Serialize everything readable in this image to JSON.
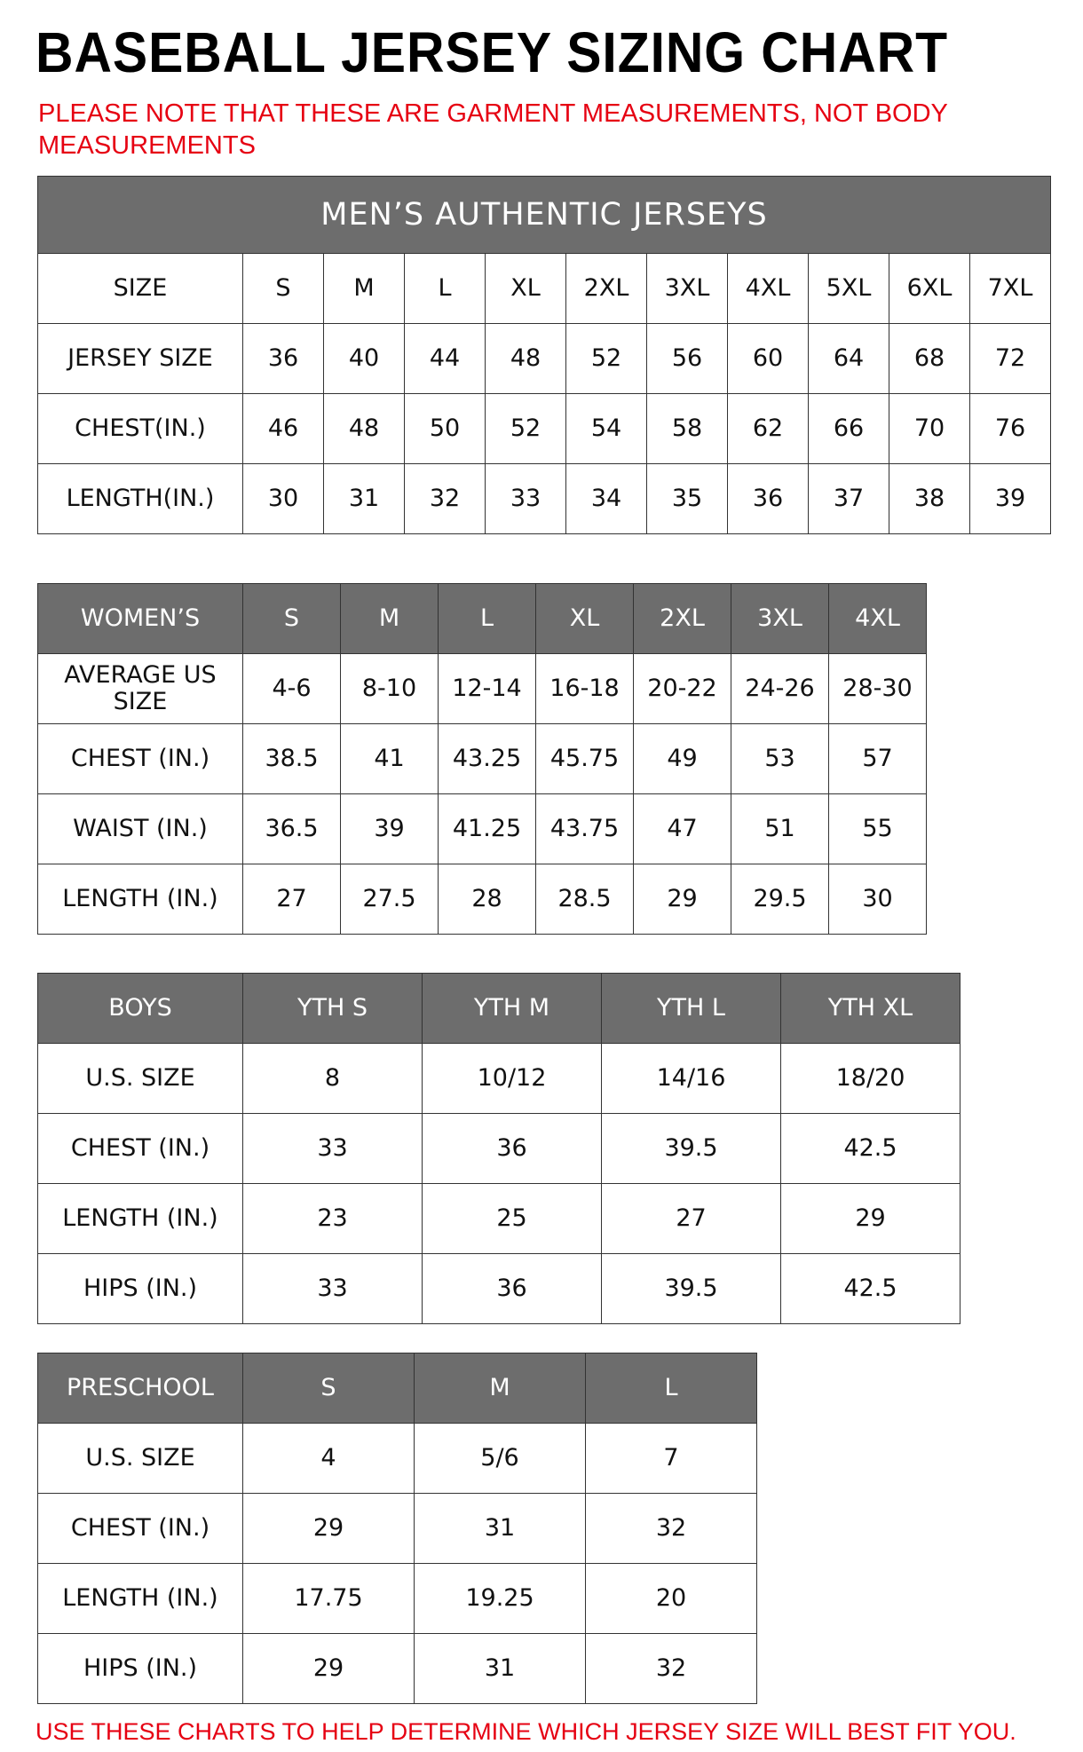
{
  "header": {
    "title": "BASEBALL JERSEY SIZING CHART",
    "note": "PLEASE NOTE THAT THESE ARE GARMENT MEASUREMENTS, NOT BODY MEASUREMENTS"
  },
  "tables": [
    {
      "caption": "MEN’S AUTHENTIC JERSEYS",
      "rows": [
        [
          "SIZE",
          "S",
          "M",
          "L",
          "XL",
          "2XL",
          "3XL",
          "4XL",
          "5XL",
          "6XL",
          "7XL"
        ],
        [
          "JERSEY SIZE",
          "36",
          "40",
          "44",
          "48",
          "52",
          "56",
          "60",
          "64",
          "68",
          "72"
        ],
        [
          "CHEST(IN.)",
          "46",
          "48",
          "50",
          "52",
          "54",
          "58",
          "62",
          "66",
          "70",
          "76"
        ],
        [
          "LENGTH(IN.)",
          "30",
          "31",
          "32",
          "33",
          "34",
          "35",
          "36",
          "37",
          "38",
          "39"
        ]
      ]
    },
    {
      "header": [
        "WOMEN’S",
        "S",
        "M",
        "L",
        "XL",
        "2XL",
        "3XL",
        "4XL"
      ],
      "rows": [
        [
          "AVERAGE US SIZE",
          "4-6",
          "8-10",
          "12-14",
          "16-18",
          "20-22",
          "24-26",
          "28-30"
        ],
        [
          "CHEST (IN.)",
          "38.5",
          "41",
          "43.25",
          "45.75",
          "49",
          "53",
          "57"
        ],
        [
          "WAIST (IN.)",
          "36.5",
          "39",
          "41.25",
          "43.75",
          "47",
          "51",
          "55"
        ],
        [
          "LENGTH (IN.)",
          "27",
          "27.5",
          "28",
          "28.5",
          "29",
          "29.5",
          "30"
        ]
      ]
    },
    {
      "header": [
        "BOYS",
        "YTH S",
        "YTH M",
        "YTH L",
        "YTH XL"
      ],
      "rows": [
        [
          "U.S. SIZE",
          "8",
          "10/12",
          "14/16",
          "18/20"
        ],
        [
          "CHEST (IN.)",
          "33",
          "36",
          "39.5",
          "42.5"
        ],
        [
          "LENGTH (IN.)",
          "23",
          "25",
          "27",
          "29"
        ],
        [
          "HIPS (IN.)",
          "33",
          "36",
          "39.5",
          "42.5"
        ]
      ]
    },
    {
      "header": [
        "PRESCHOOL",
        "S",
        "M",
        "L"
      ],
      "rows": [
        [
          "U.S. SIZE",
          "4",
          "5/6",
          "7"
        ],
        [
          "CHEST (IN.)",
          "29",
          "31",
          "32"
        ],
        [
          "LENGTH (IN.)",
          "17.75",
          "19.25",
          "20"
        ],
        [
          "HIPS (IN.)",
          "29",
          "31",
          "32"
        ]
      ]
    }
  ],
  "footer": "USE THESE CHARTS TO HELP DETERMINE WHICH JERSEY SIZE WILL BEST FIT YOU."
}
